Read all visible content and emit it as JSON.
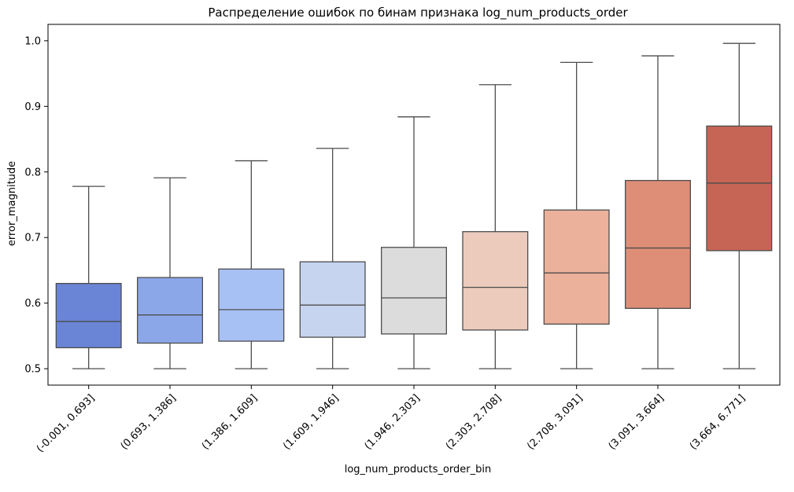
{
  "chart_data": {
    "type": "box",
    "title": "Распределение ошибок по бинам признака log_num_products_order",
    "xlabel": "log_num_products_order_bin",
    "ylabel": "error_magnitude",
    "ylim": [
      0.475,
      1.025
    ],
    "yticks": [
      "0.5",
      "0.6",
      "0.7",
      "0.8",
      "0.9",
      "1.0"
    ],
    "grid": false,
    "categories": [
      "(-0.001, 0.693]",
      "(0.693, 1.386]",
      "(1.386, 1.609]",
      "(1.609, 1.946]",
      "(1.946, 2.303]",
      "(2.303, 2.708]",
      "(2.708, 3.091]",
      "(3.091, 3.664]",
      "(3.664, 6.771]"
    ],
    "boxes": [
      {
        "min": 0.5,
        "q1": 0.532,
        "median": 0.572,
        "q3": 0.63,
        "max": 0.778,
        "color": "#6a84d6"
      },
      {
        "min": 0.5,
        "q1": 0.539,
        "median": 0.582,
        "q3": 0.639,
        "max": 0.791,
        "color": "#8ba7e8"
      },
      {
        "min": 0.5,
        "q1": 0.542,
        "median": 0.59,
        "q3": 0.652,
        "max": 0.817,
        "color": "#a8c1f5"
      },
      {
        "min": 0.5,
        "q1": 0.548,
        "median": 0.597,
        "q3": 0.663,
        "max": 0.836,
        "color": "#c6d4f0"
      },
      {
        "min": 0.5,
        "q1": 0.553,
        "median": 0.608,
        "q3": 0.685,
        "max": 0.884,
        "color": "#dcdcdc"
      },
      {
        "min": 0.5,
        "q1": 0.559,
        "median": 0.624,
        "q3": 0.709,
        "max": 0.933,
        "color": "#eccbbd"
      },
      {
        "min": 0.5,
        "q1": 0.568,
        "median": 0.646,
        "q3": 0.742,
        "max": 0.967,
        "color": "#ebb19a"
      },
      {
        "min": 0.5,
        "q1": 0.592,
        "median": 0.684,
        "q3": 0.787,
        "max": 0.977,
        "color": "#de8e77"
      },
      {
        "min": 0.5,
        "q1": 0.68,
        "median": 0.783,
        "q3": 0.87,
        "max": 0.996,
        "color": "#c66455"
      }
    ]
  }
}
